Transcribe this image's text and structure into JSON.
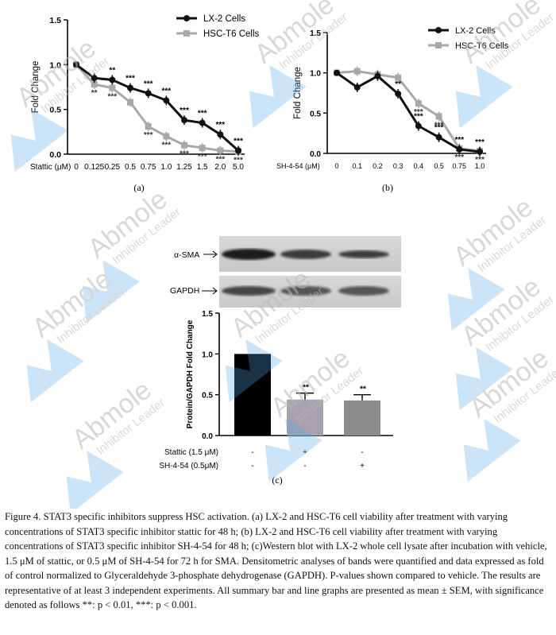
{
  "colors": {
    "lx2": "#111111",
    "hsc": "#a8a8a8",
    "bar_vehicle": "#000000",
    "bar_stattic": "#a7a2ad",
    "bar_sh454": "#8d8d8d",
    "watermark": "#b9b9b9",
    "watermark_shape": "#5aa7e6"
  },
  "watermarks": {
    "brand": "Abmole",
    "tagline": "Inhibitor Leader"
  },
  "chart_data": [
    {
      "type": "line",
      "panel_label": "(a)",
      "ylabel": "Fold Change",
      "xlabel_prefix": "Stattic (μM)",
      "categories": [
        "0",
        "0.125",
        "0.25",
        "0.5",
        "0.75",
        "1.0",
        "1.25",
        "1.5",
        "2.0",
        "5.0"
      ],
      "ylim": [
        0,
        1.5
      ],
      "yticks": [
        "0.0",
        "0.5",
        "1.0",
        "1.5"
      ],
      "legend_position": "top-right",
      "series": [
        {
          "name": "LX-2 Cells",
          "values": [
            1.0,
            0.85,
            0.83,
            0.74,
            0.68,
            0.6,
            0.38,
            0.35,
            0.22,
            0.04
          ],
          "sig": [
            "",
            "",
            "**",
            "***",
            "***",
            "***",
            "***",
            "***",
            "***",
            "***"
          ]
        },
        {
          "name": "HSC-T6 Cells",
          "values": [
            1.0,
            0.78,
            0.74,
            0.58,
            0.31,
            0.2,
            0.1,
            0.07,
            0.04,
            0.03
          ],
          "sig": [
            "",
            "**",
            "***",
            "",
            "***",
            "***",
            "***",
            "***",
            "***",
            "***"
          ]
        }
      ]
    },
    {
      "type": "line",
      "panel_label": "(b)",
      "ylabel": "Fold Change",
      "xlabel_prefix": "SH-4-54 (μM)",
      "categories": [
        "0",
        "0.1",
        "0.2",
        "0.3",
        "0.4",
        "0.5",
        "0.75",
        "1.0"
      ],
      "ylim": [
        0,
        1.5
      ],
      "yticks": [
        "0.0",
        "0.5",
        "1.0",
        "1.5"
      ],
      "legend_position": "top-right",
      "series": [
        {
          "name": "LX-2 Cells",
          "values": [
            1.0,
            0.82,
            0.96,
            0.74,
            0.34,
            0.2,
            0.05,
            0.02
          ],
          "sig": [
            "",
            "",
            "",
            "**",
            "***",
            "***",
            "***",
            "***"
          ]
        },
        {
          "name": "HSC-T6 Cells",
          "values": [
            1.0,
            1.02,
            0.98,
            0.94,
            0.62,
            0.46,
            0.06,
            0.03
          ],
          "sig": [
            "",
            "",
            "",
            "",
            "***",
            "***",
            "***",
            "***"
          ]
        }
      ]
    },
    {
      "type": "bar",
      "panel_label": "(c)",
      "ylabel": "Protein/GAPDH Fold Change",
      "ylim": [
        0,
        1.5
      ],
      "yticks": [
        "0.0",
        "0.5",
        "1.0",
        "1.5"
      ],
      "values": [
        1.0,
        0.44,
        0.43
      ],
      "errors": [
        0,
        0.08,
        0.07
      ],
      "sig": [
        "",
        "**",
        "**"
      ],
      "treatment_rows": [
        {
          "label": "Stattic (1.5 μM)",
          "marks": [
            "-",
            "+",
            "-"
          ]
        },
        {
          "label": "SH-4-54 (0.5μM)",
          "marks": [
            "-",
            "-",
            "+"
          ]
        }
      ],
      "blot_labels": [
        "α-SMA",
        "GAPDH"
      ]
    }
  ],
  "caption": "Figure 4. STAT3 specific inhibitors suppress HSC activation. (a) LX-2 and HSC-T6 cell viability after treatment with varying concentrations of STAT3 specific inhibitor stattic for 48 h; (b) LX-2 and HSC-T6 cell viability after treatment with varying concentrations of STAT3 specific inhibitor SH-4-54 for 48 h; (c)Western blot with LX-2 whole cell lysate after incubation with vehicle, 1.5 μM of stattic, or 0.5 μM of SH-4-54 for 72 h for  SMA. Densitometric analyses of bands were quantified and data expressed as fold of control normalized to Glyceraldehyde 3-phosphate dehydrogenase (GAPDH). P-values shown compared to vehicle. The results are representative of at least 3 independent experiments. All summary bar and line graphs are presented as mean ± SEM, with significance denoted as follows **: p < 0.01, ***: p < 0.001."
}
